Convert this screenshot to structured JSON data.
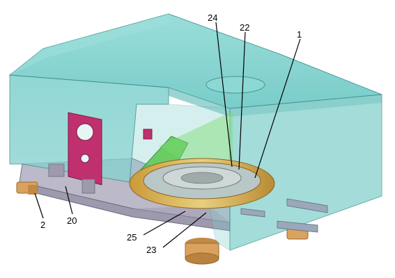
{
  "colors": {
    "housing_fill": "#6cc8c4",
    "housing_edge": "#3a8f8c",
    "plate": "#c0306e",
    "base_frame": "#b9b6c6",
    "ring": "#d8b45a",
    "brace": "#57c84d",
    "copper": "#d9a25e",
    "leader": "#000000"
  },
  "callouts": {
    "c1": "1",
    "c2": "2",
    "c20": "20",
    "c22": "22",
    "c23": "23",
    "c24": "24",
    "c25": "25"
  }
}
